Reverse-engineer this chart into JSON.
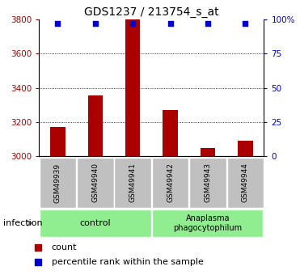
{
  "title": "GDS1237 / 213754_s_at",
  "samples": [
    "GSM49939",
    "GSM49940",
    "GSM49941",
    "GSM49942",
    "GSM49943",
    "GSM49944"
  ],
  "counts": [
    3170,
    3355,
    3800,
    3270,
    3050,
    3090
  ],
  "percentiles": [
    97,
    97,
    97,
    97,
    97,
    97
  ],
  "ylim": [
    3000,
    3800
  ],
  "yticks": [
    3000,
    3200,
    3400,
    3600,
    3800
  ],
  "right_yticks": [
    0,
    25,
    50,
    75,
    100
  ],
  "right_ylabels": [
    "0",
    "25",
    "50",
    "75",
    "100%"
  ],
  "bar_color": "#AA0000",
  "dot_color": "#0000CC",
  "infection_label": "infection",
  "legend_count_label": "count",
  "legend_pct_label": "percentile rank within the sample",
  "x_label_bg": "#C0C0C0",
  "group_bg_control": "#90EE90",
  "group_bg_anaplasma": "#90EE90",
  "bar_width": 0.4,
  "dotgrid_lines": [
    3200,
    3400,
    3600
  ],
  "control_group_color": "#90EE90",
  "anaplasma_group_color": "#90EE90"
}
